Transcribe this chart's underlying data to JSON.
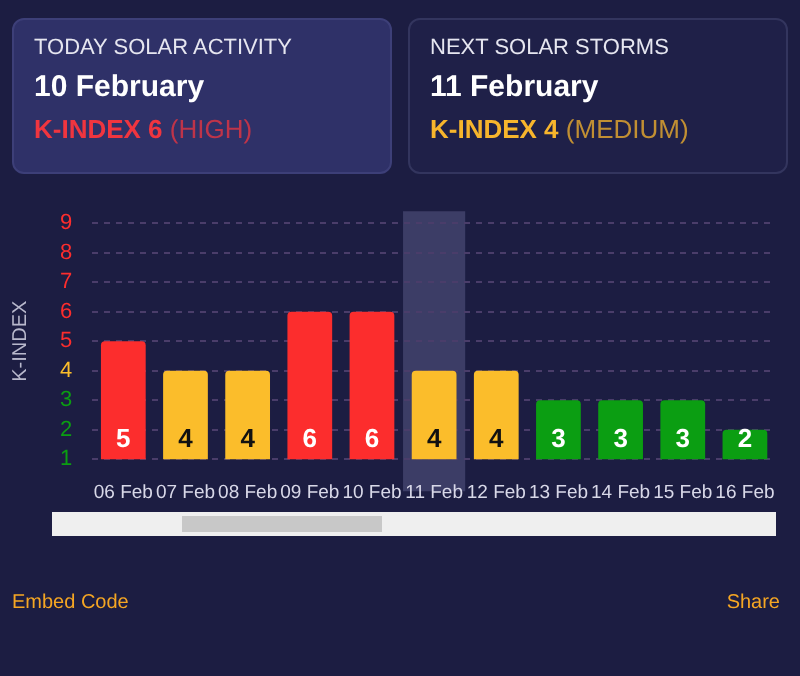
{
  "chart_data": {
    "type": "bar",
    "categories": [
      "06 Feb",
      "07 Feb",
      "08 Feb",
      "09 Feb",
      "10 Feb",
      "11 Feb",
      "12 Feb",
      "13 Feb",
      "14 Feb",
      "15 Feb",
      "16 Feb"
    ],
    "values": [
      5,
      4,
      4,
      6,
      6,
      4,
      4,
      3,
      3,
      3,
      2
    ],
    "colors": [
      "#fc2d2d",
      "#fbbd2b",
      "#fbbd2b",
      "#fc2d2d",
      "#fc2d2d",
      "#fbbd2b",
      "#fbbd2b",
      "#0b9e12",
      "#0b9e12",
      "#0b9e12",
      "#0b9e12"
    ],
    "data_labels": true,
    "ylabel": "K-INDEX",
    "ylim": [
      1,
      9
    ],
    "yticks": [
      1,
      2,
      3,
      4,
      5,
      6,
      7,
      8,
      9
    ],
    "grid": "y",
    "bands": [
      {
        "axis": "x",
        "from": "11 Feb",
        "to": "11 Feb",
        "color": "#3c3d66"
      }
    ],
    "annotations": [
      "TODAY SOLAR ACTIVITY",
      "10 February",
      "K-INDEX 6",
      "(HIGH)",
      "NEXT SOLAR STORMS",
      "11 February",
      "K-INDEX 4",
      "(MEDIUM)",
      "Embed Code",
      "Share"
    ]
  }
}
